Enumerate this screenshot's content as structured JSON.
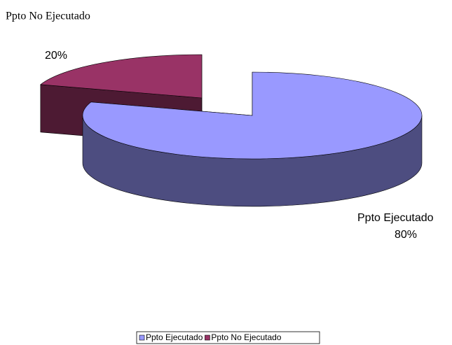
{
  "chart_data": {
    "type": "pie",
    "title": "Ppto No Ejecutado",
    "categories": [
      "Ppto Ejecutado",
      "Ppto No Ejecutado"
    ],
    "values": [
      80,
      20
    ],
    "value_labels": [
      "80%",
      "20%"
    ],
    "colors": [
      "#9999ff",
      "#993366"
    ],
    "side_colors": [
      "#4d4d80",
      "#4d1a33"
    ],
    "legend": "bottom"
  }
}
